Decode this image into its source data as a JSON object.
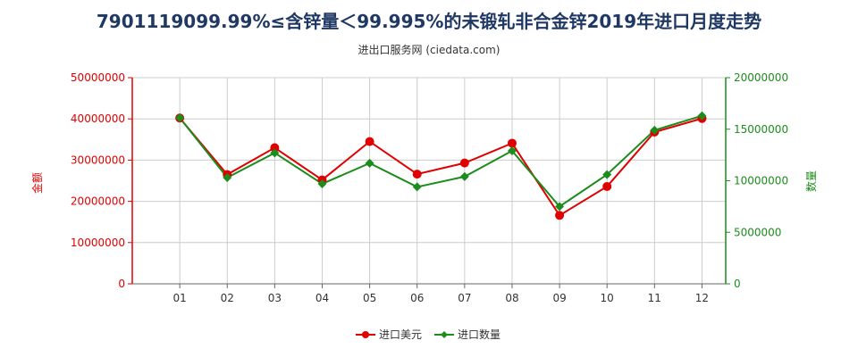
{
  "page": {
    "title": "7901119099.99%≤含锌量＜99.995%的未锻轧非合金锌2019年进口月度走势",
    "subtitle": "进出口服务网 (ciedata.com)"
  },
  "colors": {
    "amount": "#e00000",
    "quantity": "#1c8c1c",
    "grid": "#cccccc"
  },
  "chart_data": {
    "type": "line",
    "x": [
      "01",
      "02",
      "03",
      "04",
      "05",
      "06",
      "07",
      "08",
      "09",
      "10",
      "11",
      "12"
    ],
    "series": [
      {
        "name": "进口美元",
        "axis": "left",
        "values": [
          40200000,
          26500000,
          33000000,
          25200000,
          34500000,
          26600000,
          29300000,
          34100000,
          16600000,
          23600000,
          36800000,
          40100000
        ]
      },
      {
        "name": "进口数量",
        "axis": "right",
        "values": [
          16100000,
          10300000,
          12700000,
          9700000,
          11700000,
          9400000,
          10400000,
          12900000,
          7500000,
          10600000,
          14900000,
          16300000
        ]
      }
    ],
    "left_axis": {
      "label": "金额",
      "ylim": [
        0,
        50000000
      ],
      "ticks": [
        "0",
        "10000000",
        "20000000",
        "30000000",
        "40000000",
        "50000000"
      ]
    },
    "right_axis": {
      "label": "数量",
      "ylim": [
        0,
        20000000
      ],
      "ticks": [
        "0",
        "5000000",
        "10000000",
        "15000000",
        "20000000"
      ]
    },
    "grid": true,
    "legend_position": "bottom"
  }
}
